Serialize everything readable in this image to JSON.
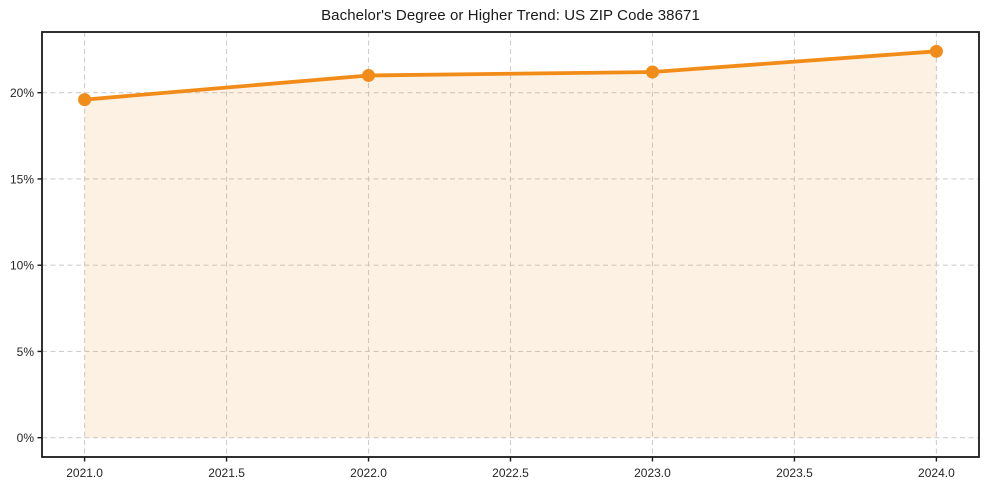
{
  "colors": {
    "line": "#f28c18",
    "marker": "#f28c18",
    "fill": "#f28c18",
    "fill_opacity": 0.12,
    "grid": "#cfcfcf",
    "spine": "#1a1a1a",
    "tick": "#1a1a1a",
    "text": "#262626",
    "background": "#ffffff"
  },
  "chart_data": {
    "type": "line",
    "title": "Bachelor's Degree or Higher Trend: US ZIP Code 38671",
    "series_name": "Bachelor's Degree or Higher",
    "x": [
      2021,
      2022,
      2023,
      2024
    ],
    "values": [
      19.6,
      21.0,
      21.2,
      22.4
    ],
    "unit": "%",
    "xlabel": "",
    "ylabel": "",
    "xlim": [
      2020.85,
      2024.15
    ],
    "ylim": [
      -1.12,
      23.52
    ],
    "xticks": [
      2021.0,
      2021.5,
      2022.0,
      2022.5,
      2023.0,
      2023.5,
      2024.0
    ],
    "xtick_labels": [
      "2021.0",
      "2021.5",
      "2022.0",
      "2022.5",
      "2023.0",
      "2023.5",
      "2024.0"
    ],
    "yticks": [
      0,
      5,
      10,
      15,
      20
    ],
    "ytick_labels": [
      "0%",
      "5%",
      "10%",
      "15%",
      "20%"
    ],
    "grid": true,
    "grid_style": "dashed",
    "area_fill": true,
    "fill_baseline": 0,
    "marker": "circle",
    "legend": "none"
  }
}
